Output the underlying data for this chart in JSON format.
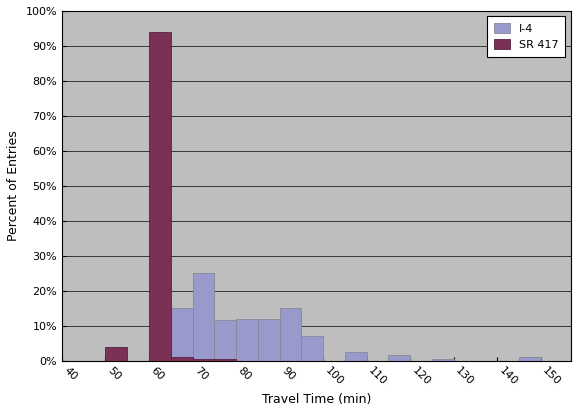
{
  "title": "",
  "xlabel": "Travel Time (min)",
  "ylabel": "Percent of Entries",
  "xlim": [
    40,
    157
  ],
  "ylim": [
    0,
    1.0
  ],
  "xticks": [
    40,
    50,
    60,
    70,
    80,
    90,
    100,
    110,
    120,
    130,
    140,
    150
  ],
  "yticks": [
    0.0,
    0.1,
    0.2,
    0.3,
    0.4,
    0.5,
    0.6,
    0.7,
    0.8,
    0.9,
    1.0
  ],
  "ytick_labels": [
    "0%",
    "10%",
    "20%",
    "30%",
    "40%",
    "50%",
    "60%",
    "70%",
    "80%",
    "90%",
    "100%"
  ],
  "bar_width": 5.0,
  "i4_color": "#9999cc",
  "sr417_color": "#7b3055",
  "background_color": "#bebebe",
  "i4_data": {
    "centers": [
      62.5,
      67.5,
      72.5,
      77.5,
      82.5,
      87.5,
      92.5,
      97.5,
      107.5,
      117.5,
      127.5,
      147.5
    ],
    "values": [
      0.03,
      0.15,
      0.25,
      0.115,
      0.12,
      0.12,
      0.15,
      0.07,
      0.025,
      0.015,
      0.005,
      0.01
    ]
  },
  "sr417_data": {
    "centers": [
      52.5,
      62.5,
      67.5,
      72.5,
      77.5
    ],
    "values": [
      0.04,
      0.94,
      0.01,
      0.005,
      0.005
    ]
  },
  "legend_labels": [
    "I-4",
    "SR 417"
  ],
  "legend_loc": "upper right",
  "figure_bgcolor": "#ffffff"
}
